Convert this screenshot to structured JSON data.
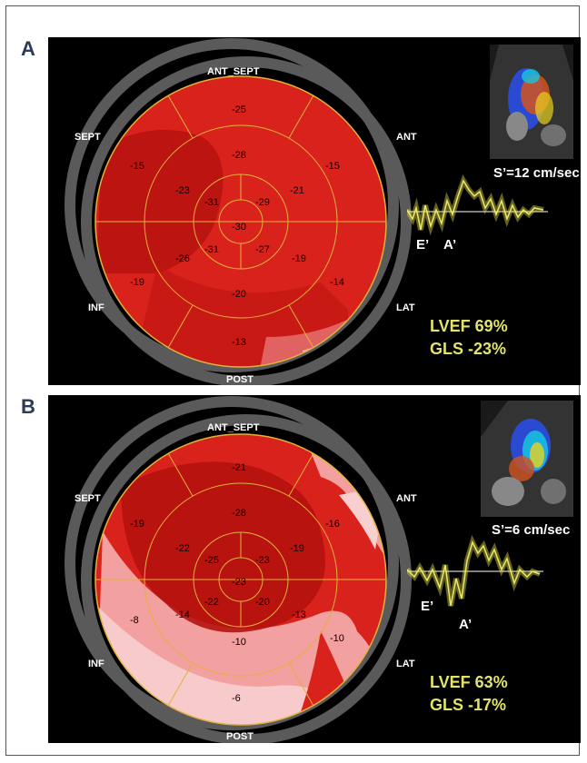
{
  "panels": [
    {
      "letter": "A",
      "labels": {
        "top": "ANT_SEPT",
        "ant": "ANT",
        "lat": "LAT",
        "post": "POST",
        "inf": "INF",
        "sept": "SEPT"
      },
      "segments": {
        "basal": [
          "-25",
          "-15",
          "-14",
          "-13",
          "-19",
          "-15"
        ],
        "mid": [
          "-28",
          "-21",
          "-19",
          "-20",
          "-26",
          "-23"
        ],
        "apical": [
          "-31",
          "-29",
          "-27",
          "-31"
        ],
        "apex": "-30"
      },
      "velocity": "S’=12 cm/sec",
      "e_label": "E’",
      "a_label": "A’",
      "lvef": "LVEF 69%",
      "gls": "GLS -23%"
    },
    {
      "letter": "B",
      "labels": {
        "top": "ANT_SEPT",
        "ant": "ANT",
        "lat": "LAT",
        "post": "POST",
        "inf": "INF",
        "sept": "SEPT"
      },
      "segments": {
        "basal": [
          "-21",
          "-16",
          "-10",
          "-6",
          "-8",
          "-19"
        ],
        "mid": [
          "-28",
          "-19",
          "-13",
          "-10",
          "-14",
          "-22"
        ],
        "apical": [
          "-25",
          "-23",
          "-20",
          "-22"
        ],
        "apex": "-23"
      },
      "velocity": "S’=6 cm/sec",
      "e_label": "E’",
      "a_label": "A’",
      "lvef": "LVEF 63%",
      "gls": "GLS -17%"
    }
  ],
  "colors": {
    "map_red": "#d9221c",
    "dark_red": "#b4120e",
    "pink": "#f2a0a0",
    "light_pink": "#f7cfcf",
    "lavender": "#9a9ff0",
    "stat_yellow": "#e3e36a",
    "wave_yellow": "#d9d64a"
  }
}
